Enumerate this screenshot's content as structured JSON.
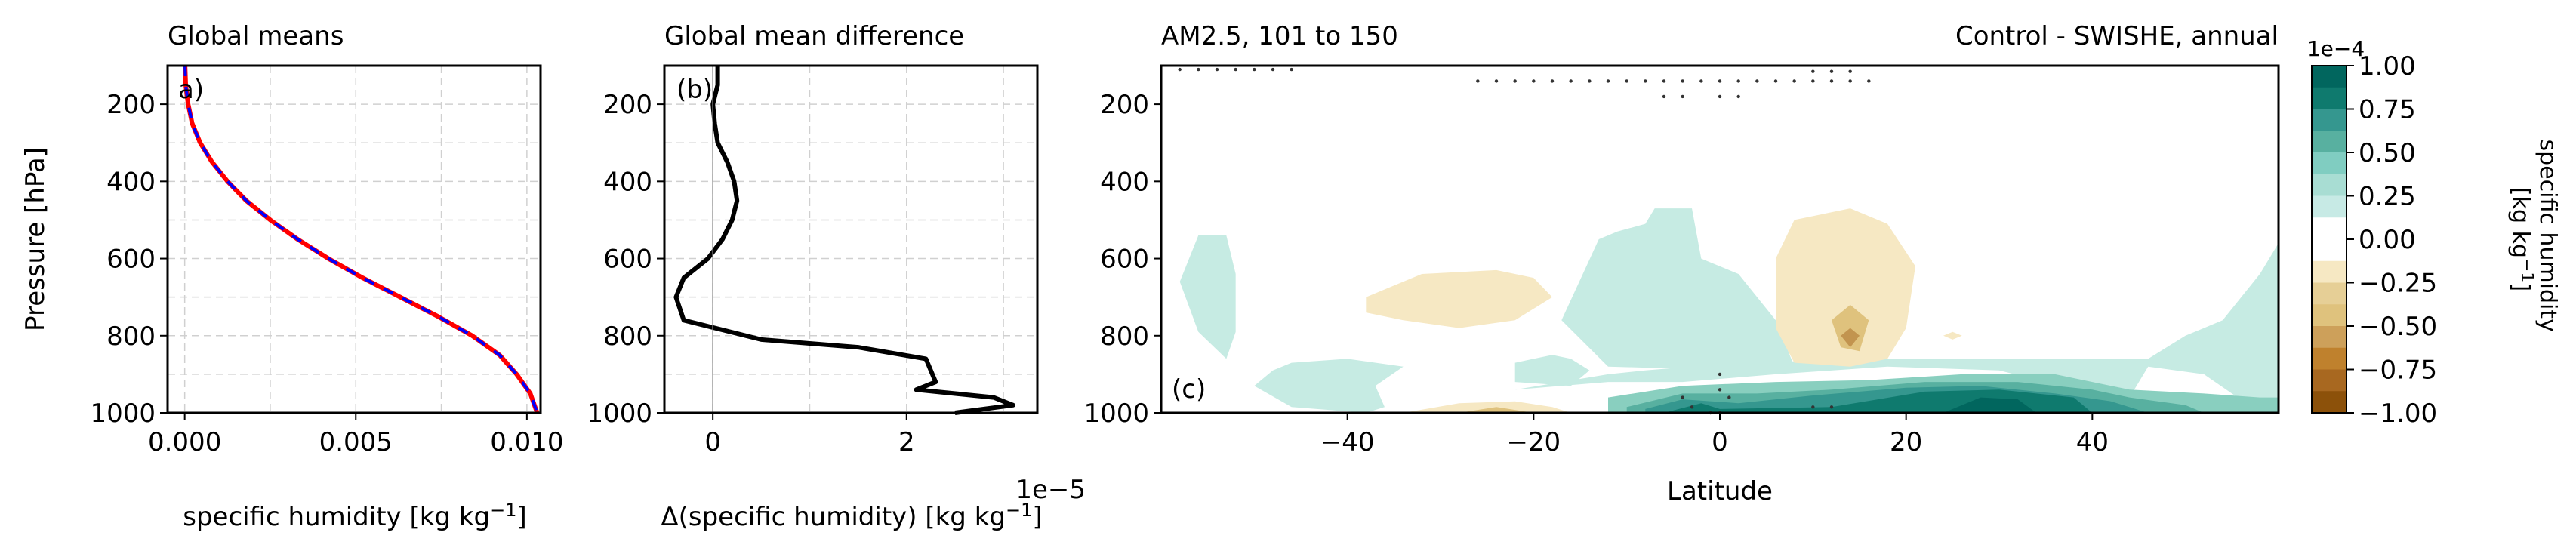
{
  "chart_data": [
    {
      "type": "line",
      "panel_label": "a)",
      "title": "Global means",
      "xlabel": "specific humidity [kg kg",
      "xlabel_sup": "−1",
      "xlabel_end": "]",
      "ylabel": "Pressure [hPa]",
      "xlim": [
        -0.0005,
        0.0104
      ],
      "ylim": [
        1000,
        100
      ],
      "xticks": [
        0.0,
        0.005,
        0.01
      ],
      "xtick_labels": [
        "0.000",
        "0.005",
        "0.010"
      ],
      "yticks": [
        200,
        400,
        600,
        800,
        1000
      ],
      "ytick_labels": [
        "200",
        "400",
        "600",
        "800",
        "1000"
      ],
      "grid": true,
      "series": [
        {
          "color": "#ff0000",
          "style": "solid",
          "x": [
            1e-05,
            3e-05,
            0.0001,
            0.00022,
            0.00045,
            0.0008,
            0.00125,
            0.0018,
            0.0025,
            0.0033,
            0.0042,
            0.0052,
            0.0063,
            0.0074,
            0.0084,
            0.0092,
            0.0097,
            0.0101,
            0.0103
          ],
          "y": [
            100,
            150,
            200,
            250,
            300,
            350,
            400,
            450,
            500,
            550,
            600,
            650,
            700,
            750,
            800,
            850,
            900,
            950,
            1000
          ]
        },
        {
          "color": "#0000ff",
          "style": "dashed",
          "x": [
            1e-05,
            3e-05,
            0.0001,
            0.00022,
            0.00045,
            0.0008,
            0.00125,
            0.0018,
            0.0025,
            0.0033,
            0.0042,
            0.0052,
            0.0063,
            0.0074,
            0.0084,
            0.0092,
            0.0097,
            0.0101,
            0.0103
          ],
          "y": [
            100,
            150,
            200,
            250,
            300,
            350,
            400,
            450,
            500,
            550,
            600,
            650,
            700,
            750,
            800,
            850,
            900,
            950,
            1000
          ]
        }
      ]
    },
    {
      "type": "line",
      "panel_label": "(b)",
      "title": "Global mean difference",
      "xlabel": "Δ(specific humidity) [kg kg",
      "xlabel_sup": "−1",
      "xlabel_end": "]",
      "offset_label": "1e−5",
      "xlim": [
        -0.5,
        3.35
      ],
      "ylim": [
        1000,
        100
      ],
      "xticks": [
        0,
        2
      ],
      "xtick_labels": [
        "0",
        "2"
      ],
      "yticks": [
        200,
        400,
        600,
        800,
        1000
      ],
      "ytick_labels": [
        "200",
        "400",
        "600",
        "800",
        "1000"
      ],
      "grid": true,
      "series": [
        {
          "color": "#000000",
          "style": "solid",
          "x": [
            0.05,
            0.05,
            0.0,
            0.02,
            0.05,
            0.15,
            0.22,
            0.25,
            0.2,
            0.1,
            -0.05,
            -0.3,
            -0.38,
            -0.3,
            0.5,
            1.5,
            2.2,
            2.3,
            2.1,
            2.9,
            3.1,
            2.5
          ],
          "y": [
            100,
            150,
            200,
            250,
            300,
            350,
            400,
            450,
            500,
            550,
            600,
            650,
            700,
            760,
            810,
            830,
            860,
            920,
            940,
            960,
            980,
            1000
          ]
        }
      ]
    },
    {
      "type": "contour",
      "panel_label": "(c)",
      "title_left": "AM2.5, 101 to 150",
      "title_right": "Control - SWISHE, annual",
      "xlabel": "Latitude",
      "xlim": [
        -60,
        60
      ],
      "ylim": [
        1000,
        100
      ],
      "xticks": [
        -40,
        -20,
        0,
        20,
        40
      ],
      "xtick_labels": [
        "−40",
        "−20",
        "0",
        "20",
        "40"
      ],
      "yticks": [
        200,
        400,
        600,
        800,
        1000
      ],
      "ytick_labels": [
        "200",
        "400",
        "600",
        "800",
        "1000"
      ],
      "regions": [
        {
          "x": [
            -56,
            -58,
            -56,
            -53,
            -52,
            -52,
            -53
          ],
          "y": [
            540,
            660,
            790,
            860,
            790,
            640,
            540
          ],
          "color": "#c6ebe3"
        },
        {
          "x": [
            -48,
            -50,
            -46,
            -38,
            -36,
            -37,
            -34,
            -40,
            -46
          ],
          "y": [
            890,
            930,
            985,
            1000,
            985,
            930,
            880,
            860,
            870
          ],
          "color": "#c6ebe3"
        },
        {
          "x": [
            -13,
            -17,
            -12,
            2,
            8,
            6,
            2,
            -2,
            -3,
            -7,
            -8,
            -11
          ],
          "y": [
            550,
            760,
            880,
            890,
            880,
            760,
            640,
            600,
            470,
            470,
            510,
            530
          ],
          "color": "#c6ebe3"
        },
        {
          "x": [
            -22,
            -22,
            -16,
            -14,
            -16,
            -18,
            -20
          ],
          "y": [
            870,
            920,
            930,
            890,
            860,
            850,
            860
          ],
          "color": "#c6ebe3"
        },
        {
          "x": [
            -22,
            -12,
            -8,
            2,
            18,
            30,
            42,
            46,
            50,
            54,
            58,
            60,
            60,
            58,
            52,
            46,
            44,
            40,
            30,
            18,
            6,
            -4,
            -12,
            -22
          ],
          "y": [
            940,
            900,
            890,
            870,
            860,
            860,
            860,
            860,
            800,
            760,
            640,
            560,
            1000,
            1000,
            900,
            880,
            960,
            950,
            890,
            880,
            900,
            920,
            920,
            940
          ],
          "color": "#c6ebe3"
        },
        {
          "x": [
            -12,
            -4,
            6,
            16,
            26,
            36,
            44,
            52,
            58,
            60,
            60,
            -12
          ],
          "y": [
            960,
            930,
            920,
            915,
            900,
            900,
            940,
            950,
            960,
            960,
            1000,
            1000
          ],
          "color": "#89cfbf"
        },
        {
          "x": [
            -10,
            -4,
            4,
            12,
            22,
            32,
            40,
            44,
            50,
            52,
            -10
          ],
          "y": [
            985,
            950,
            950,
            940,
            920,
            920,
            940,
            960,
            980,
            1000,
            1000
          ],
          "color": "#58b0a0"
        },
        {
          "x": [
            -8,
            -4,
            2,
            10,
            20,
            28,
            36,
            42,
            46,
            -8
          ],
          "y": [
            990,
            965,
            975,
            955,
            935,
            930,
            950,
            970,
            1000,
            1000
          ],
          "color": "#35978f"
        },
        {
          "x": [
            -6,
            -2,
            0,
            12,
            22,
            30,
            38,
            40,
            -6
          ],
          "y": [
            1000,
            975,
            990,
            985,
            945,
            940,
            960,
            1000,
            1000
          ],
          "color": "#0f7a6e"
        },
        {
          "x": [
            24,
            28,
            32,
            34,
            32,
            26
          ],
          "y": [
            1000,
            960,
            965,
            1000,
            1000,
            1000
          ],
          "color": "#01665e"
        },
        {
          "x": [
            -38,
            -32,
            -24,
            -20,
            -18,
            -22,
            -28,
            -34,
            -38
          ],
          "y": [
            700,
            640,
            630,
            650,
            700,
            760,
            780,
            760,
            740
          ],
          "color": "#f6e8c3"
        },
        {
          "x": [
            6,
            8,
            14,
            18,
            21,
            20,
            18,
            14,
            8,
            6
          ],
          "y": [
            600,
            500,
            470,
            510,
            620,
            780,
            860,
            880,
            870,
            780
          ],
          "color": "#f6e8c3"
        },
        {
          "x": [
            12,
            14,
            16,
            15,
            13
          ],
          "y": [
            760,
            720,
            760,
            840,
            830
          ],
          "color": "#dfc27d"
        },
        {
          "x": [
            13,
            14,
            15,
            14
          ],
          "y": [
            800,
            780,
            800,
            830
          ],
          "color": "#c2944f"
        },
        {
          "x": [
            -34,
            -28,
            -22,
            -18,
            -16,
            -20,
            -30,
            -36
          ],
          "y": [
            1000,
            975,
            970,
            985,
            1000,
            1000,
            1000,
            1000
          ],
          "color": "#f6e8c3"
        },
        {
          "x": [
            -28,
            -24,
            -20,
            -26
          ],
          "y": [
            1000,
            985,
            1000,
            1000
          ],
          "color": "#dfc27d"
        },
        {
          "x": [
            24,
            25,
            26,
            25
          ],
          "y": [
            800,
            790,
            800,
            810
          ],
          "color": "#f6e8c3"
        }
      ],
      "stipple": {
        "x": [
          -58,
          -56,
          -54,
          -52,
          -50,
          -48,
          -46,
          -26,
          -24,
          -22,
          -20,
          -18,
          -16,
          -14,
          -12,
          -10,
          -8,
          -6,
          -4,
          -2,
          0,
          2,
          4,
          6,
          8,
          10,
          12,
          14,
          16,
          10,
          12,
          14,
          -6,
          -4,
          0,
          2,
          -4,
          -3,
          0,
          0,
          1,
          0,
          -1,
          10,
          12
        ],
        "y": [
          110,
          110,
          110,
          110,
          110,
          110,
          110,
          140,
          140,
          140,
          140,
          140,
          140,
          140,
          140,
          140,
          140,
          140,
          140,
          140,
          140,
          140,
          140,
          140,
          140,
          140,
          140,
          140,
          140,
          115,
          115,
          115,
          180,
          180,
          180,
          180,
          960,
          985,
          900,
          940,
          960,
          1000,
          1000,
          985,
          985
        ]
      }
    }
  ],
  "colorbar": {
    "label_line1": "specific humidity",
    "label_line2": "[kg kg",
    "label_sup": "−1",
    "label_end": "]",
    "offset_label": "1e−4",
    "tick_labels": [
      "1.00",
      "0.75",
      "0.50",
      "0.25",
      "0.00",
      "−0.25",
      "−0.50",
      "−0.75",
      "−1.00"
    ],
    "levels": [
      1.0,
      0.875,
      0.75,
      0.625,
      0.5,
      0.375,
      0.25,
      0.125,
      0.0,
      -0.125,
      -0.25,
      -0.375,
      -0.5,
      -0.625,
      -0.75,
      -0.875,
      -1.0
    ],
    "colors": [
      "#01665e",
      "#0f7a6e",
      "#35978f",
      "#58b0a0",
      "#80cdc1",
      "#a8ddd3",
      "#c7eae5",
      "#ffffff",
      "#ffffff",
      "#f6e8c3",
      "#e6cf96",
      "#dfc27d",
      "#cda05a",
      "#bf812d",
      "#a86820",
      "#8c510a"
    ]
  }
}
